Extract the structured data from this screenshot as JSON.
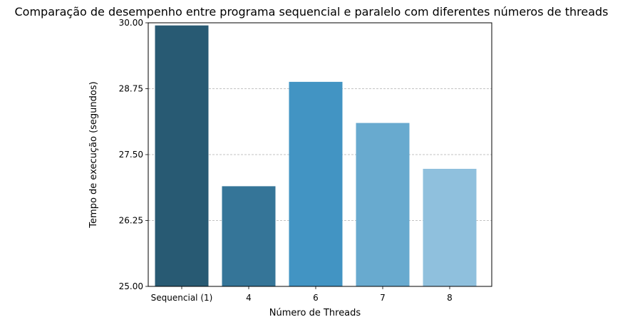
{
  "chart_data": {
    "type": "bar",
    "title": "Comparação de desempenho entre programa sequencial e paralelo com diferentes números de threads",
    "xlabel": "Número de Threads",
    "ylabel": "Tempo de execução (segundos)",
    "categories": [
      "Sequencial (1)",
      "4",
      "6",
      "7",
      "8"
    ],
    "values": [
      29.95,
      26.9,
      28.88,
      28.1,
      27.23
    ],
    "colors": [
      "#285a73",
      "#357598",
      "#4294c3",
      "#68aacf",
      "#8fc0dd"
    ],
    "ylim": [
      25.0,
      30.0
    ],
    "yticks": [
      25.0,
      26.25,
      27.5,
      28.75,
      30.0
    ],
    "ytick_labels": [
      "25.00",
      "26.25",
      "27.50",
      "28.75",
      "30.00"
    ],
    "grid": "y-dashed"
  }
}
